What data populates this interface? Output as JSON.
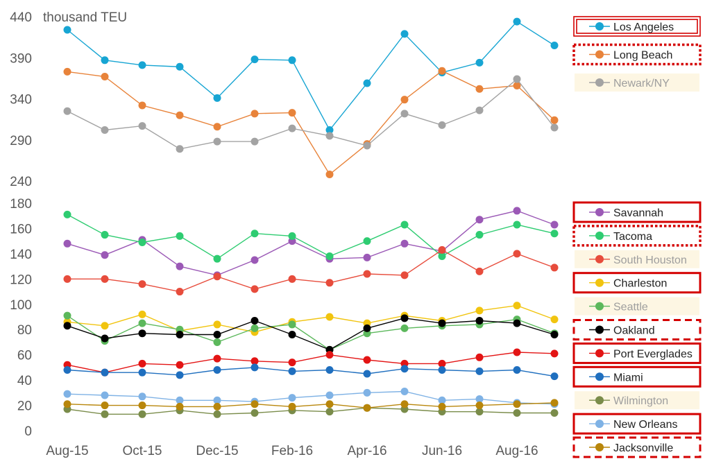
{
  "chart_data": {
    "type": "line",
    "unit_label": "thousand TEU",
    "categories": [
      "Aug-15",
      "Sep-15",
      "Oct-15",
      "Nov-15",
      "Dec-15",
      "Jan-16",
      "Feb-16",
      "Mar-16",
      "Apr-16",
      "May-16",
      "Jun-16",
      "Jul-16",
      "Aug-16",
      "Sep-16"
    ],
    "x_tick_labels": [
      "Aug-15",
      "Oct-15",
      "Dec-15",
      "Feb-16",
      "Apr-16",
      "Jun-16",
      "Aug-16"
    ],
    "panels": [
      {
        "name": "upper",
        "ylim": [
          240,
          440
        ],
        "yticks": [
          240,
          290,
          340,
          390,
          440
        ],
        "series": [
          {
            "name": "Los Angeles",
            "color": "#17a5d3",
            "legend_frame": "double",
            "values": [
              424,
              387,
              381,
              379,
              341,
              388,
              387,
              302,
              359,
              419,
              372,
              384,
              434,
              405
            ]
          },
          {
            "name": "Long Beach",
            "color": "#e8833a",
            "legend_frame": "dotted",
            "values": [
              373,
              367,
              332,
              320,
              306,
              322,
              323,
              248,
              285,
              339,
              374,
              352,
              356,
              314
            ]
          },
          {
            "name": "Newark/NY",
            "color": "#a3a3a3",
            "legend_frame": "highlight",
            "values": [
              325,
              302,
              307,
              279,
              288,
              288,
              304,
              295,
              283,
              322,
              308,
              326,
              364,
              305
            ]
          }
        ]
      },
      {
        "name": "lower",
        "ylim": [
          0,
          180
        ],
        "yticks": [
          0,
          20,
          40,
          60,
          80,
          100,
          120,
          140,
          160,
          180
        ],
        "series": [
          {
            "name": "Savannah",
            "color": "#9b59b6",
            "legend_frame": "solid",
            "values": [
              148,
              139,
              151,
              130,
              123,
              135,
              150,
              136,
              137,
              148,
              142,
              167,
              174,
              163
            ]
          },
          {
            "name": "Tacoma",
            "color": "#2ecc71",
            "legend_frame": "dotted",
            "values": [
              171,
              155,
              149,
              154,
              136,
              156,
              154,
              138,
              150,
              163,
              138,
              155,
              163,
              156
            ]
          },
          {
            "name": "South Houston",
            "color": "#e74c3c",
            "legend_frame": "highlight",
            "values": [
              120,
              120,
              116,
              110,
              122,
              112,
              120,
              117,
              124,
              123,
              143,
              126,
              140,
              129
            ]
          },
          {
            "name": "Charleston",
            "color": "#f1c40f",
            "legend_frame": "solid",
            "values": [
              86,
              83,
              92,
              79,
              84,
              78,
              86,
              90,
              85,
              91,
              87,
              95,
              99,
              88
            ]
          },
          {
            "name": "Seattle",
            "color": "#5cb85c",
            "legend_frame": "highlight",
            "values": [
              91,
              71,
              85,
              80,
              70,
              81,
              84,
              64,
              77,
              81,
              83,
              84,
              88,
              77
            ]
          },
          {
            "name": "Oakland",
            "color": "#000000",
            "legend_frame": "dashed",
            "values": [
              83,
              73,
              77,
              76,
              76,
              87,
              76,
              64,
              81,
              89,
              85,
              87,
              85,
              76
            ]
          },
          {
            "name": "Port Everglades",
            "color": "#e31414",
            "legend_frame": "solid",
            "values": [
              52,
              46,
              53,
              52,
              57,
              55,
              54,
              60,
              56,
              53,
              53,
              58,
              62,
              61
            ]
          },
          {
            "name": "Miami",
            "color": "#1f6fbf",
            "legend_frame": "solid",
            "values": [
              48,
              46,
              46,
              44,
              48,
              50,
              47,
              48,
              45,
              49,
              48,
              47,
              48,
              43
            ]
          },
          {
            "name": "Wilmington",
            "color": "#7a8c4a",
            "legend_frame": "highlight",
            "values": [
              17,
              13,
              13,
              16,
              13,
              14,
              16,
              15,
              18,
              17,
              15,
              15,
              14,
              14
            ]
          },
          {
            "name": "New Orleans",
            "color": "#7fb2e5",
            "legend_frame": "solid",
            "values": [
              29,
              28,
              27,
              24,
              24,
              23,
              26,
              28,
              30,
              31,
              24,
              25,
              22,
              21
            ]
          },
          {
            "name": "Jacksonville",
            "color": "#b8860b",
            "legend_frame": "dashed",
            "values": [
              21,
              20,
              20,
              19,
              19,
              21,
              19,
              21,
              18,
              21,
              19,
              20,
              21,
              22
            ]
          }
        ]
      }
    ],
    "legend_position": "right"
  }
}
